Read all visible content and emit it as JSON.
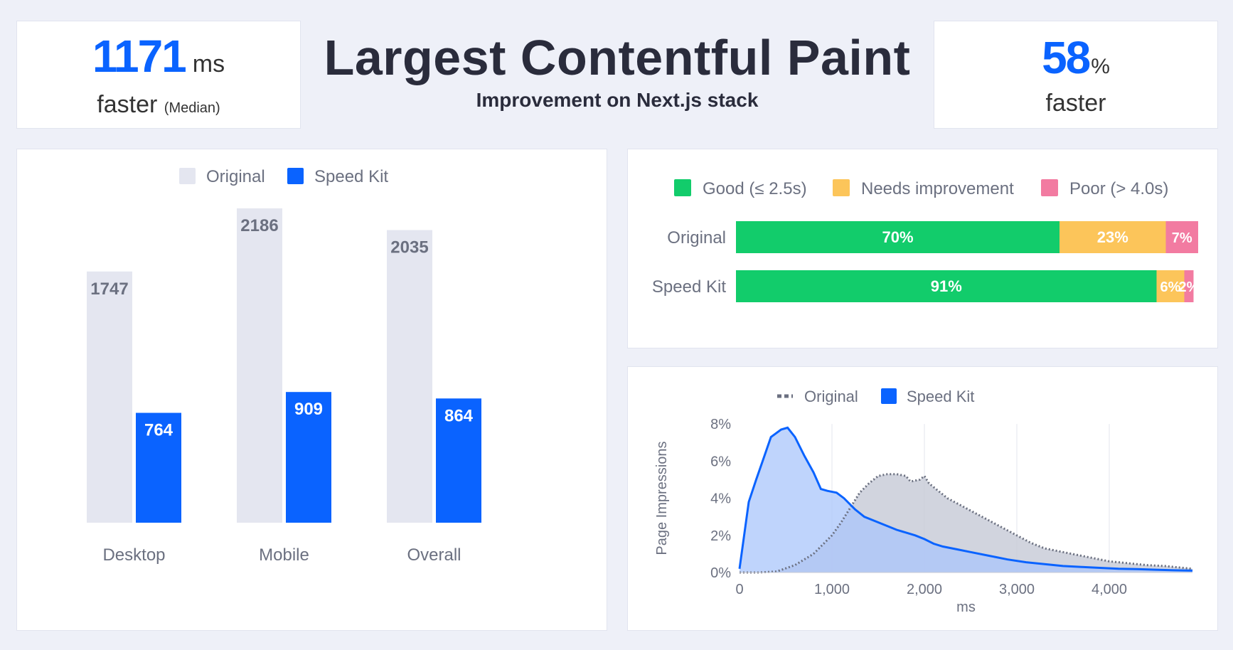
{
  "kpi_left": {
    "value": "1171",
    "unit": "ms",
    "label": "faster",
    "note": "(Median)"
  },
  "kpi_right": {
    "value": "58",
    "unit": "%",
    "label": "faster"
  },
  "header": {
    "title": "Largest Contentful Paint",
    "subtitle": "Improvement on Next.js stack"
  },
  "colors": {
    "original_bar": "#e4e6f0",
    "speedkit": "#0a63ff",
    "good": "#12cc6b",
    "needs_improvement": "#fcc55a",
    "poor": "#f27ba1",
    "original_area": "#c9ccd8",
    "speedkit_area": "#a9c6fb"
  },
  "chart_data": [
    {
      "type": "bar",
      "categories": [
        "Desktop",
        "Mobile",
        "Overall"
      ],
      "series": [
        {
          "name": "Original",
          "values": [
            1747,
            2186,
            2035
          ]
        },
        {
          "name": "Speed Kit",
          "values": [
            764,
            909,
            864
          ]
        }
      ],
      "ylim": [
        0,
        2186
      ],
      "legend": "top"
    },
    {
      "type": "bar",
      "orientation": "horizontal-stacked",
      "categories": [
        "Original",
        "Speed Kit"
      ],
      "series": [
        {
          "name": "Good (≤ 2.5s)",
          "values": [
            70,
            91
          ],
          "labels": [
            "70%",
            "91%"
          ]
        },
        {
          "name": "Needs improvement",
          "values": [
            23,
            6
          ],
          "labels": [
            "23%",
            "6%"
          ]
        },
        {
          "name": "Poor (> 4.0s)",
          "values": [
            7,
            2
          ],
          "labels": [
            "7%",
            "2%"
          ]
        }
      ],
      "legend": "top"
    },
    {
      "type": "area",
      "xlabel": "ms",
      "ylabel": "Page Impressions",
      "xlim": [
        0,
        4900
      ],
      "ylim": [
        0,
        8
      ],
      "x_ticks": [
        0,
        1000,
        2000,
        3000,
        4000
      ],
      "x_tick_labels": [
        "0",
        "1,000",
        "2,000",
        "3,000",
        "4,000"
      ],
      "y_ticks": [
        0,
        2,
        4,
        6,
        8
      ],
      "y_tick_labels": [
        "0%",
        "2%",
        "4%",
        "6%",
        "8%"
      ],
      "grid": "vertical",
      "legend": "top",
      "series": [
        {
          "name": "Original",
          "style": "dotted",
          "points": [
            [
              0,
              0
            ],
            [
              200,
              0
            ],
            [
              400,
              0.05
            ],
            [
              600,
              0.4
            ],
            [
              800,
              1.0
            ],
            [
              1000,
              2.0
            ],
            [
              1100,
              2.7
            ],
            [
              1200,
              3.5
            ],
            [
              1300,
              4.3
            ],
            [
              1400,
              4.8
            ],
            [
              1500,
              5.2
            ],
            [
              1600,
              5.3
            ],
            [
              1700,
              5.3
            ],
            [
              1800,
              5.2
            ],
            [
              1850,
              4.9
            ],
            [
              1950,
              5.0
            ],
            [
              2000,
              5.2
            ],
            [
              2050,
              4.8
            ],
            [
              2150,
              4.4
            ],
            [
              2250,
              4.0
            ],
            [
              2400,
              3.6
            ],
            [
              2550,
              3.2
            ],
            [
              2700,
              2.8
            ],
            [
              2850,
              2.4
            ],
            [
              3000,
              2.0
            ],
            [
              3150,
              1.6
            ],
            [
              3300,
              1.3
            ],
            [
              3450,
              1.15
            ],
            [
              3600,
              1.0
            ],
            [
              3800,
              0.8
            ],
            [
              4000,
              0.6
            ],
            [
              4200,
              0.5
            ],
            [
              4400,
              0.4
            ],
            [
              4600,
              0.35
            ],
            [
              4800,
              0.25
            ],
            [
              4900,
              0.2
            ]
          ]
        },
        {
          "name": "Speed Kit",
          "style": "solid",
          "points": [
            [
              0,
              0.2
            ],
            [
              50,
              2.0
            ],
            [
              100,
              3.8
            ],
            [
              180,
              5.0
            ],
            [
              250,
              6.0
            ],
            [
              340,
              7.3
            ],
            [
              450,
              7.7
            ],
            [
              520,
              7.8
            ],
            [
              600,
              7.3
            ],
            [
              700,
              6.3
            ],
            [
              800,
              5.4
            ],
            [
              880,
              4.5
            ],
            [
              950,
              4.4
            ],
            [
              1050,
              4.3
            ],
            [
              1130,
              4.0
            ],
            [
              1250,
              3.4
            ],
            [
              1350,
              3.0
            ],
            [
              1450,
              2.8
            ],
            [
              1550,
              2.6
            ],
            [
              1700,
              2.3
            ],
            [
              1900,
              2.0
            ],
            [
              2000,
              1.8
            ],
            [
              2100,
              1.55
            ],
            [
              2200,
              1.4
            ],
            [
              2350,
              1.25
            ],
            [
              2500,
              1.1
            ],
            [
              2700,
              0.9
            ],
            [
              2900,
              0.7
            ],
            [
              3100,
              0.55
            ],
            [
              3300,
              0.45
            ],
            [
              3500,
              0.35
            ],
            [
              3700,
              0.3
            ],
            [
              3900,
              0.25
            ],
            [
              4100,
              0.2
            ],
            [
              4300,
              0.18
            ],
            [
              4500,
              0.15
            ],
            [
              4700,
              0.12
            ],
            [
              4900,
              0.1
            ]
          ]
        }
      ]
    }
  ]
}
